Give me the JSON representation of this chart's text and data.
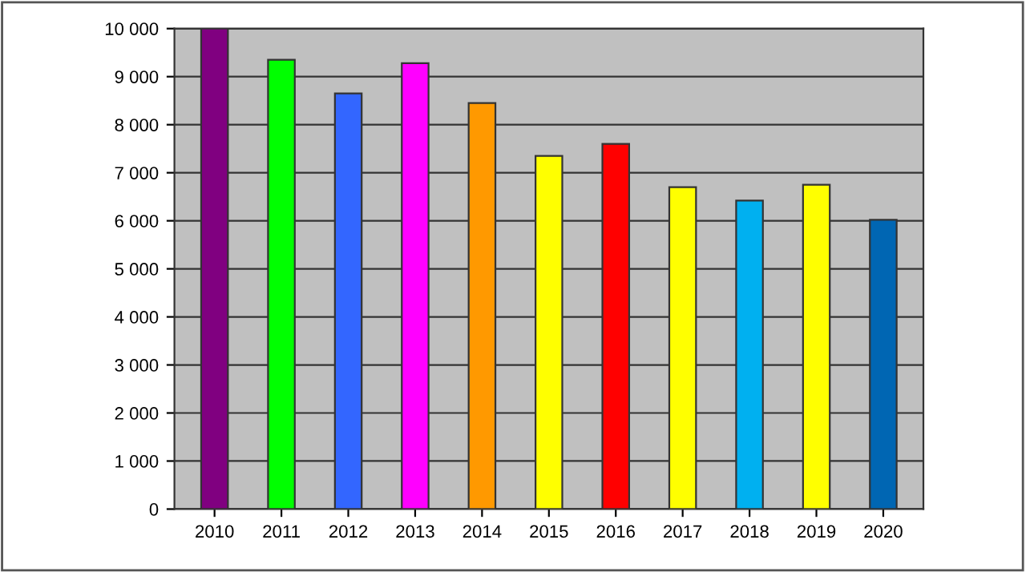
{
  "chart_data": {
    "type": "bar",
    "categories": [
      "2010",
      "2011",
      "2012",
      "2013",
      "2014",
      "2015",
      "2016",
      "2017",
      "2018",
      "2019",
      "2020"
    ],
    "values": [
      10000,
      9350,
      8650,
      9280,
      8450,
      7350,
      7600,
      6700,
      6420,
      6750,
      6020
    ],
    "colors": [
      "#800080",
      "#00ff00",
      "#3366ff",
      "#ff00ff",
      "#ff9900",
      "#ffff00",
      "#ff0000",
      "#ffff00",
      "#00b0f0",
      "#ffff00",
      "#0066b3"
    ],
    "ylim": [
      0,
      10000
    ],
    "yticks": [
      {
        "value": 0,
        "label": "0"
      },
      {
        "value": 1000,
        "label": "1 000"
      },
      {
        "value": 2000,
        "label": "2 000"
      },
      {
        "value": 3000,
        "label": "3 000"
      },
      {
        "value": 4000,
        "label": "4 000"
      },
      {
        "value": 5000,
        "label": "5 000"
      },
      {
        "value": 6000,
        "label": "6 000"
      },
      {
        "value": 7000,
        "label": "7 000"
      },
      {
        "value": 8000,
        "label": "8 000"
      },
      {
        "value": 9000,
        "label": "9 000"
      },
      {
        "value": 10000,
        "label": "10 000"
      }
    ],
    "grid": "y"
  }
}
